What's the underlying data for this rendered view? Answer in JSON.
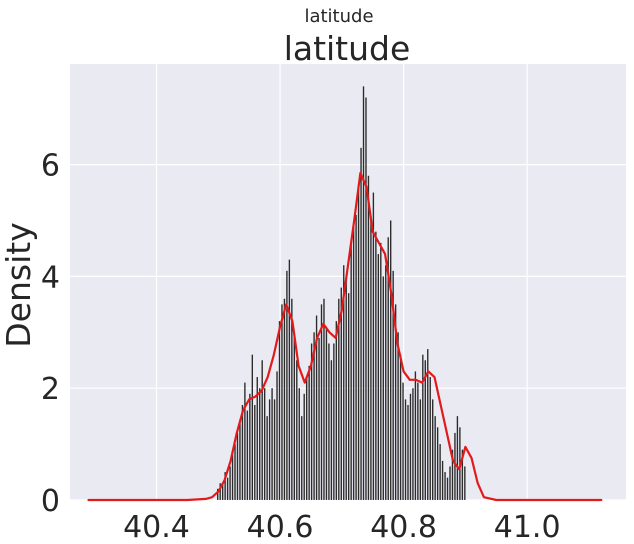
{
  "figure": {
    "suptitle": "latitude"
  },
  "chart_data": {
    "type": "bar",
    "title": "latitude",
    "xlabel": "",
    "ylabel": "Density",
    "xlim": [
      40.26,
      41.16
    ],
    "ylim": [
      0,
      7.8
    ],
    "xticks": [
      40.4,
      40.6,
      40.8,
      41.0
    ],
    "xtick_labels": [
      "40.4",
      "40.6",
      "40.8",
      "41.0"
    ],
    "yticks": [
      0,
      2,
      4,
      6
    ],
    "ytick_labels": [
      "0",
      "2",
      "4",
      "6"
    ],
    "grid": true,
    "histogram": {
      "bin_width": 0.004,
      "bin_centers": [
        40.5,
        40.504,
        40.508,
        40.512,
        40.516,
        40.52,
        40.524,
        40.528,
        40.532,
        40.536,
        40.54,
        40.544,
        40.548,
        40.552,
        40.556,
        40.56,
        40.564,
        40.568,
        40.572,
        40.576,
        40.58,
        40.584,
        40.588,
        40.592,
        40.596,
        40.6,
        40.604,
        40.608,
        40.612,
        40.616,
        40.62,
        40.624,
        40.628,
        40.632,
        40.636,
        40.64,
        40.644,
        40.648,
        40.652,
        40.656,
        40.66,
        40.664,
        40.668,
        40.672,
        40.676,
        40.68,
        40.684,
        40.688,
        40.692,
        40.696,
        40.7,
        40.704,
        40.708,
        40.712,
        40.716,
        40.72,
        40.724,
        40.728,
        40.732,
        40.736,
        40.74,
        40.744,
        40.748,
        40.752,
        40.756,
        40.76,
        40.764,
        40.768,
        40.772,
        40.776,
        40.78,
        40.784,
        40.788,
        40.792,
        40.796,
        40.8,
        40.804,
        40.808,
        40.812,
        40.816,
        40.82,
        40.824,
        40.828,
        40.832,
        40.836,
        40.84,
        40.844,
        40.848,
        40.852,
        40.856,
        40.86,
        40.864,
        40.868,
        40.872,
        40.876,
        40.88,
        40.884,
        40.888,
        40.892,
        40.896,
        40.9
      ],
      "densities": [
        0.2,
        0.3,
        0.3,
        0.5,
        0.4,
        0.6,
        0.8,
        1.0,
        1.2,
        1.4,
        1.7,
        2.1,
        1.6,
        1.9,
        2.6,
        1.7,
        2.2,
        2.0,
        2.5,
        2.0,
        1.5,
        1.8,
        2.0,
        1.8,
        2.3,
        3.2,
        3.5,
        3.6,
        4.1,
        4.3,
        3.6,
        3.0,
        2.5,
        2.0,
        1.5,
        1.9,
        2.2,
        2.4,
        2.8,
        3.0,
        3.3,
        2.9,
        3.5,
        3.6,
        3.1,
        2.8,
        2.5,
        2.8,
        3.2,
        3.6,
        3.8,
        4.2,
        4.0,
        3.7,
        4.6,
        4.9,
        5.1,
        5.6,
        6.3,
        7.4,
        7.2,
        5.8,
        5.0,
        5.5,
        4.8,
        4.4,
        4.6,
        4.0,
        4.2,
        4.7,
        5.0,
        4.1,
        3.5,
        3.0,
        2.6,
        2.1,
        1.8,
        1.7,
        1.9,
        2.0,
        2.3,
        2.1,
        1.8,
        2.6,
        2.5,
        2.7,
        2.2,
        1.8,
        1.5,
        1.3,
        1.0,
        0.7,
        0.5,
        0.4,
        0.6,
        0.9,
        1.2,
        1.5,
        1.3,
        0.9,
        0.6
      ],
      "color": "#2b2b2b"
    },
    "series": [
      {
        "type": "kde-line",
        "color": "#e31a1c",
        "x": [
          40.29,
          40.3,
          40.35,
          40.4,
          40.45,
          40.48,
          40.49,
          40.5,
          40.51,
          40.52,
          40.53,
          40.54,
          40.55,
          40.56,
          40.57,
          40.58,
          40.59,
          40.6,
          40.61,
          40.62,
          40.63,
          40.64,
          40.65,
          40.66,
          40.67,
          40.68,
          40.69,
          40.7,
          40.71,
          40.72,
          40.73,
          40.74,
          40.75,
          40.76,
          40.77,
          40.78,
          40.79,
          40.8,
          40.81,
          40.82,
          40.83,
          40.84,
          40.85,
          40.86,
          40.87,
          40.88,
          40.89,
          40.9,
          40.91,
          40.92,
          40.93,
          40.95,
          41.0,
          41.05,
          41.1,
          41.12
        ],
        "y": [
          0,
          0,
          0,
          0,
          0,
          0.02,
          0.05,
          0.15,
          0.35,
          0.7,
          1.2,
          1.6,
          1.8,
          1.85,
          1.95,
          2.2,
          2.6,
          3.1,
          3.5,
          3.2,
          2.4,
          2.1,
          2.4,
          2.9,
          3.15,
          3.0,
          2.9,
          3.4,
          4.2,
          5.0,
          5.85,
          5.6,
          4.8,
          4.6,
          4.4,
          3.7,
          2.8,
          2.3,
          2.15,
          2.15,
          2.1,
          2.3,
          2.2,
          1.7,
          1.2,
          0.7,
          0.55,
          0.95,
          0.75,
          0.3,
          0.05,
          0,
          0,
          0,
          0,
          0
        ]
      }
    ]
  }
}
